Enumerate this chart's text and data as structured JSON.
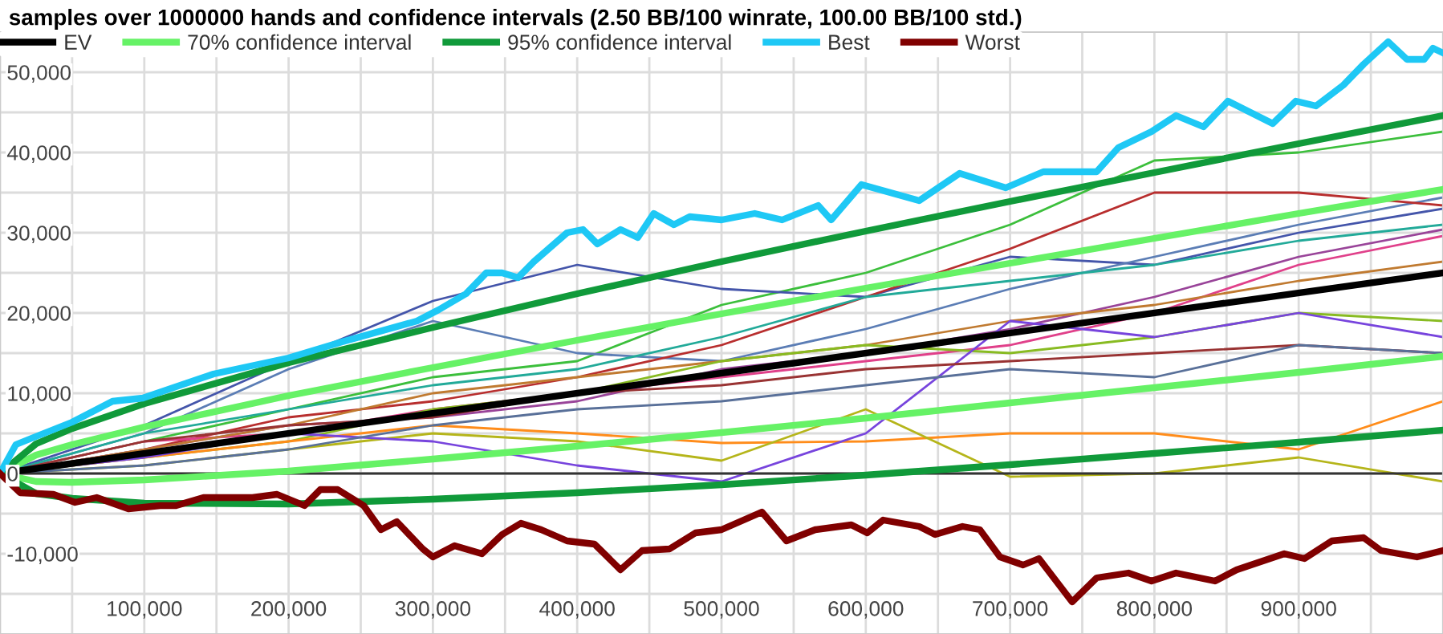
{
  "chart_data": {
    "type": "line",
    "title": "samples over 1000000 hands and confidence intervals (2.50 BB/100 winrate, 100.00 BB/100 std.)",
    "xlim": [
      0,
      1000000
    ],
    "ylim": [
      -20000,
      55000
    ],
    "xticks": [
      {
        "value": 0,
        "label": null
      },
      {
        "value": 50000,
        "label": null
      },
      {
        "value": 100000,
        "label": "100,000"
      },
      {
        "value": 150000,
        "label": null
      },
      {
        "value": 200000,
        "label": "200,000"
      },
      {
        "value": 250000,
        "label": null
      },
      {
        "value": 300000,
        "label": "300,000"
      },
      {
        "value": 350000,
        "label": null
      },
      {
        "value": 400000,
        "label": "400,000"
      },
      {
        "value": 450000,
        "label": null
      },
      {
        "value": 500000,
        "label": "500,000"
      },
      {
        "value": 550000,
        "label": null
      },
      {
        "value": 600000,
        "label": "600,000"
      },
      {
        "value": 650000,
        "label": null
      },
      {
        "value": 700000,
        "label": "700,000"
      },
      {
        "value": 750000,
        "label": null
      },
      {
        "value": 800000,
        "label": "800,000"
      },
      {
        "value": 850000,
        "label": null
      },
      {
        "value": 900000,
        "label": "900,000"
      },
      {
        "value": 950000,
        "label": null
      }
    ],
    "yticks": [
      {
        "value": -15000,
        "label": null
      },
      {
        "value": -10000,
        "label": "-10,000"
      },
      {
        "value": -5000,
        "label": null
      },
      {
        "value": 0,
        "label": "0"
      },
      {
        "value": 5000,
        "label": null
      },
      {
        "value": 10000,
        "label": "10,000"
      },
      {
        "value": 15000,
        "label": null
      },
      {
        "value": 20000,
        "label": "20,000"
      },
      {
        "value": 25000,
        "label": null
      },
      {
        "value": 30000,
        "label": "30,000"
      },
      {
        "value": 35000,
        "label": null
      },
      {
        "value": 40000,
        "label": "40,000"
      },
      {
        "value": 45000,
        "label": null
      },
      {
        "value": 50000,
        "label": "50,000"
      }
    ],
    "grid": true,
    "legend": "top",
    "marker": "none",
    "line_style": "solid",
    "ref_lines": [
      {
        "axis": "y",
        "value": 0,
        "label": null,
        "color": "#333333"
      }
    ],
    "x": [
      0,
      100000,
      200000,
      300000,
      400000,
      500000,
      600000,
      700000,
      800000,
      900000,
      1000000
    ],
    "series": [
      {
        "color": "#3cbf3c",
        "values": [
          0,
          4000,
          8000,
          12000,
          14000,
          21000,
          25000,
          31000,
          39000,
          40000,
          42600
        ]
      },
      {
        "color": "#4455aa",
        "values": [
          0,
          6000,
          14000,
          21500,
          26000,
          23000,
          22000,
          27000,
          26000,
          30000,
          33000
        ]
      },
      {
        "color": "#5b7db5",
        "values": [
          0,
          5000,
          13000,
          19000,
          15000,
          14000,
          18000,
          23000,
          27000,
          31000,
          34400
        ]
      },
      {
        "color": "#b82e2e",
        "values": [
          0,
          3000,
          7000,
          9000,
          12000,
          16000,
          22000,
          28000,
          35000,
          35000,
          33400
        ]
      },
      {
        "color": "#22aa99",
        "values": [
          0,
          5000,
          8000,
          11000,
          13000,
          17000,
          22000,
          24000,
          26000,
          29000,
          31000
        ]
      },
      {
        "color": "#994499",
        "values": [
          0,
          3000,
          6000,
          7000,
          9000,
          13000,
          15000,
          18000,
          22000,
          27000,
          30400
        ]
      },
      {
        "color": "#e0408a",
        "values": [
          0,
          4000,
          5000,
          8000,
          10000,
          12000,
          14000,
          16000,
          20000,
          26000,
          29600
        ]
      },
      {
        "color": "#c07a30",
        "values": [
          0,
          3000,
          6000,
          10000,
          12000,
          14000,
          16000,
          19000,
          21000,
          24000,
          26400
        ]
      },
      {
        "color": "#88bb22",
        "values": [
          0,
          2000,
          4000,
          8000,
          10000,
          14000,
          16000,
          15000,
          17000,
          20000,
          19000
        ]
      },
      {
        "color": "#ff8c1a",
        "values": [
          0,
          2000,
          4000,
          6000,
          5000,
          3800,
          4000,
          5000,
          5000,
          3000,
          9000
        ]
      },
      {
        "color": "#b5b51a",
        "values": [
          0,
          1000,
          3000,
          5000,
          4000,
          1600,
          8000,
          -400,
          0,
          2000,
          -1000
        ]
      },
      {
        "color": "#7744dd",
        "values": [
          0,
          2000,
          5000,
          4000,
          1000,
          -1000,
          5000,
          19000,
          17000,
          20000,
          17000
        ]
      },
      {
        "color": "#993333",
        "values": [
          0,
          4000,
          6000,
          7000,
          10000,
          11000,
          13000,
          14000,
          15000,
          16000,
          15000
        ]
      },
      {
        "color": "#597099",
        "values": [
          0,
          1000,
          3000,
          6000,
          8000,
          9000,
          11000,
          13000,
          12000,
          16000,
          15000
        ]
      },
      {
        "name": "EV",
        "color": "#000000",
        "x": [
          0,
          1000000
        ],
        "values": [
          0,
          25000
        ]
      },
      {
        "name": "70% confidence interval",
        "color": "#66f266",
        "x": [
          0,
          25000,
          50000,
          100000,
          200000,
          300000,
          400000,
          500000,
          600000,
          700000,
          800000,
          900000,
          1000000
        ],
        "values": [
          0,
          2300,
          3600,
          5800,
          9700,
          13200,
          16600,
          19900,
          23100,
          26200,
          29300,
          32400,
          35400
        ]
      },
      {
        "color": "#66f266",
        "x": [
          0,
          25000,
          50000,
          100000,
          200000,
          300000,
          400000,
          500000,
          600000,
          700000,
          800000,
          900000,
          1000000
        ],
        "values": [
          0,
          -1000,
          -1100,
          -800,
          300,
          1800,
          3400,
          5100,
          6900,
          8800,
          10700,
          12600,
          14600
        ]
      },
      {
        "name": "95% confidence interval",
        "color": "#109a3a",
        "x": [
          0,
          25000,
          50000,
          100000,
          200000,
          300000,
          400000,
          500000,
          600000,
          700000,
          800000,
          900000,
          1000000
        ],
        "values": [
          0,
          3700,
          5600,
          8700,
          13800,
          18200,
          22400,
          26400,
          30200,
          33900,
          37500,
          41100,
          44600
        ]
      },
      {
        "color": "#109a3a",
        "x": [
          0,
          25000,
          50000,
          100000,
          200000,
          300000,
          400000,
          500000,
          600000,
          700000,
          800000,
          900000,
          1000000
        ],
        "values": [
          0,
          -2500,
          -3100,
          -3700,
          -3800,
          -3200,
          -2400,
          -1400,
          -200,
          1100,
          2500,
          3900,
          5400
        ]
      },
      {
        "name": "Best",
        "color": "#1ec8f5",
        "x": [
          0,
          11000,
          22000,
          50000,
          78000,
          99000,
          148000,
          200000,
          237000,
          289000,
          304000,
          323000,
          337000,
          348000,
          359000,
          370000,
          393000,
          404000,
          414000,
          430000,
          442000,
          453000,
          467000,
          478000,
          500000,
          523000,
          542000,
          567000,
          576000,
          597000,
          637000,
          665000,
          697000,
          723000,
          760000,
          775000,
          798000,
          815000,
          834000,
          851000,
          882000,
          898000,
          912000,
          931000,
          945000,
          962000,
          975000,
          987000,
          993000,
          1000000
        ],
        "values": [
          0,
          3600,
          4400,
          6400,
          9000,
          9400,
          12400,
          14400,
          16400,
          19000,
          20400,
          22400,
          25000,
          25000,
          24400,
          26400,
          30000,
          30400,
          28600,
          30400,
          29400,
          32400,
          31000,
          32000,
          31600,
          32400,
          31600,
          33400,
          31600,
          36000,
          34000,
          37400,
          35600,
          37600,
          37600,
          40600,
          42600,
          44600,
          43200,
          46400,
          43600,
          46400,
          45800,
          48400,
          51000,
          53800,
          51600,
          51600,
          53000,
          52400
        ]
      },
      {
        "name": "Worst",
        "color": "#800000",
        "x": [
          0,
          14000,
          37000,
          52000,
          67000,
          89000,
          111000,
          122000,
          141000,
          156000,
          175000,
          192000,
          211000,
          222000,
          234000,
          252000,
          264000,
          275000,
          293000,
          300000,
          315000,
          334000,
          348000,
          361000,
          375000,
          393000,
          412000,
          430000,
          445000,
          464000,
          482000,
          500000,
          528000,
          545000,
          565000,
          590000,
          601000,
          612000,
          637000,
          648000,
          667000,
          679000,
          693000,
          709000,
          720000,
          743000,
          760000,
          782000,
          798000,
          815000,
          842000,
          857000,
          890000,
          904000,
          923000,
          945000,
          957000,
          982000,
          1000000
        ],
        "values": [
          0,
          -2400,
          -2600,
          -3600,
          -3000,
          -4400,
          -4000,
          -4000,
          -3000,
          -3000,
          -3000,
          -2600,
          -4000,
          -2000,
          -2000,
          -4000,
          -7000,
          -6000,
          -9400,
          -10400,
          -9000,
          -10000,
          -7600,
          -6200,
          -7000,
          -8400,
          -8800,
          -12000,
          -9600,
          -9400,
          -7400,
          -7000,
          -4800,
          -8400,
          -7000,
          -6400,
          -7400,
          -5800,
          -6600,
          -7600,
          -6600,
          -7000,
          -10400,
          -11400,
          -10600,
          -16000,
          -13000,
          -12400,
          -13400,
          -12400,
          -13400,
          -12000,
          -10000,
          -10600,
          -8400,
          -8000,
          -9600,
          -10400,
          -9600
        ]
      }
    ]
  }
}
